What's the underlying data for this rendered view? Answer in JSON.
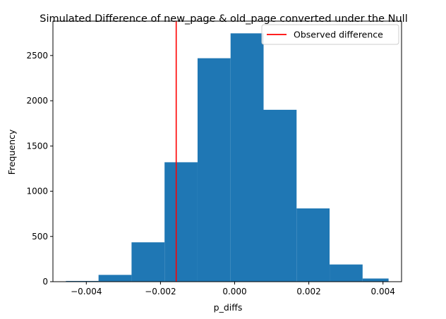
{
  "chart_data": {
    "type": "bar",
    "title": "Simulated Difference of new_page & old_page converted under the Null",
    "xlabel": "p_diffs",
    "ylabel": "Frequency",
    "xlim": [
      -0.0049,
      0.0045
    ],
    "ylim": [
      0,
      2880
    ],
    "bar_color": "#1f77b4",
    "bins": [
      {
        "x0": -0.00455,
        "x1": -0.00367,
        "count": 8
      },
      {
        "x0": -0.00367,
        "x1": -0.00278,
        "count": 75
      },
      {
        "x0": -0.00278,
        "x1": -0.00189,
        "count": 435
      },
      {
        "x0": -0.00189,
        "x1": -0.001,
        "count": 1320
      },
      {
        "x0": -0.001,
        "x1": -0.00011,
        "count": 2470
      },
      {
        "x0": -0.00011,
        "x1": 0.00078,
        "count": 2745
      },
      {
        "x0": 0.00078,
        "x1": 0.00167,
        "count": 1900
      },
      {
        "x0": 0.00167,
        "x1": 0.00256,
        "count": 810
      },
      {
        "x0": 0.00256,
        "x1": 0.00345,
        "count": 190
      },
      {
        "x0": 0.00345,
        "x1": 0.00415,
        "count": 35
      }
    ],
    "xticks": [
      {
        "value": -0.004,
        "label": "−0.004"
      },
      {
        "value": -0.002,
        "label": "−0.002"
      },
      {
        "value": 0.0,
        "label": "0.000"
      },
      {
        "value": 0.002,
        "label": "0.002"
      },
      {
        "value": 0.004,
        "label": "0.004"
      }
    ],
    "yticks": [
      {
        "value": 0,
        "label": "0"
      },
      {
        "value": 500,
        "label": "500"
      },
      {
        "value": 1000,
        "label": "1000"
      },
      {
        "value": 1500,
        "label": "1500"
      },
      {
        "value": 2000,
        "label": "2000"
      },
      {
        "value": 2500,
        "label": "2500"
      }
    ],
    "observed_line": {
      "x": -0.001576,
      "color": "#ff0000",
      "label": "Observed difference"
    },
    "legend": {
      "position": "top-right"
    },
    "grid": false
  }
}
